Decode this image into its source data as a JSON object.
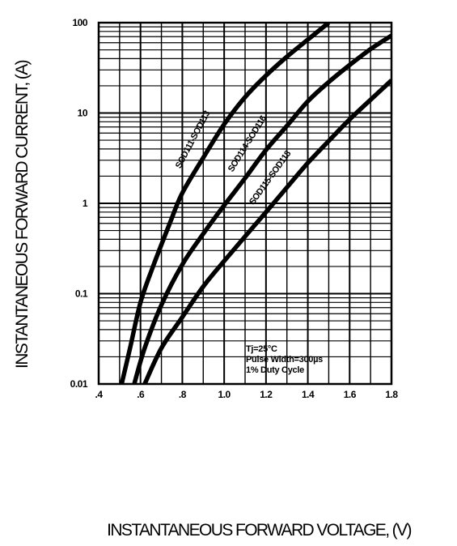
{
  "chart_data": {
    "type": "line",
    "xlabel": "INSTANTANEOUS FORWARD VOLTAGE, (V)",
    "ylabel": "INSTANTANEOUS FORWARD CURRENT, (A)",
    "xscale": "linear",
    "yscale": "log",
    "xlim": [
      0.4,
      1.8
    ],
    "ylim": [
      0.01,
      100
    ],
    "grid": true,
    "x_ticks": [
      0.4,
      0.6,
      0.8,
      1.0,
      1.2,
      1.4,
      1.6,
      1.8
    ],
    "x_tick_labels": [
      ".4",
      ".6",
      ".8",
      "1.0",
      "1.2",
      "1.4",
      "1.6",
      "1.8"
    ],
    "y_ticks": [
      0.01,
      0.1,
      1,
      10,
      100
    ],
    "y_tick_labels": [
      "0.01",
      "0.1",
      "1",
      "10",
      "100"
    ],
    "series": [
      {
        "name": "SOD111-SOD113",
        "x": [
          0.51,
          0.55,
          0.6,
          0.66,
          0.74,
          0.8,
          0.9,
          1.0,
          1.1,
          1.2,
          1.3,
          1.4,
          1.5
        ],
        "y": [
          0.01,
          0.025,
          0.08,
          0.2,
          0.6,
          1.3,
          3.2,
          7.5,
          15,
          26,
          42,
          65,
          100
        ]
      },
      {
        "name": "SOD114-SOD116",
        "x": [
          0.57,
          0.62,
          0.7,
          0.8,
          0.9,
          1.0,
          1.1,
          1.2,
          1.3,
          1.4,
          1.5,
          1.6,
          1.7,
          1.8
        ],
        "y": [
          0.01,
          0.025,
          0.075,
          0.21,
          0.46,
          0.95,
          1.9,
          3.9,
          7.2,
          13.5,
          22,
          34,
          51,
          72
        ]
      },
      {
        "name": "SOD115-SOD118",
        "x": [
          0.62,
          0.7,
          0.8,
          0.9,
          1.0,
          1.1,
          1.2,
          1.3,
          1.4,
          1.5,
          1.6,
          1.7,
          1.8
        ],
        "y": [
          0.01,
          0.025,
          0.055,
          0.12,
          0.23,
          0.43,
          0.8,
          1.5,
          2.8,
          4.9,
          8.5,
          14,
          23
        ]
      }
    ],
    "series_labels": [
      "SOD111-SOD113",
      "SOD114-SOD116",
      "SOD115-SOD118"
    ],
    "annotation": [
      "Tj=25°C",
      "Pulse Width=300µs",
      "1% Duty Cycle"
    ]
  }
}
